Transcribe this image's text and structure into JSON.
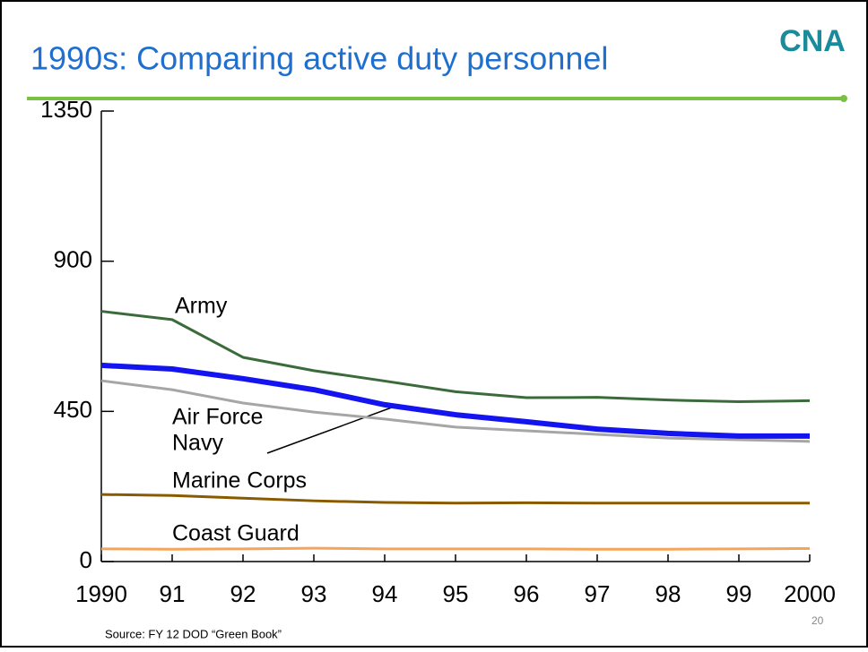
{
  "logo": "CNA",
  "slide_number": "20",
  "source": "Source: FY 12 DOD “Green Book”",
  "chart_data": {
    "type": "line",
    "title": "1990s: Comparing active duty personnel",
    "categories": [
      "1990",
      "91",
      "92",
      "93",
      "94",
      "95",
      "96",
      "97",
      "98",
      "99",
      "2000"
    ],
    "ylim": [
      0,
      1350
    ],
    "yticks": [
      0,
      450,
      900,
      1350
    ],
    "series": [
      {
        "name": "Army",
        "color": "#3b6b3b",
        "width": 3,
        "values": [
          750,
          725,
          612,
          572,
          541,
          509,
          491,
          492,
          484,
          479,
          482
        ]
      },
      {
        "name": "Air Force",
        "color": "#a6a6a6",
        "width": 3,
        "values": [
          542,
          515,
          475,
          448,
          427,
          403,
          392,
          381,
          370,
          365,
          360
        ]
      },
      {
        "name": "Navy",
        "color": "#1414f0",
        "width": 6,
        "values": [
          588,
          577,
          548,
          515,
          470,
          440,
          419,
          397,
          384,
          376,
          376
        ]
      },
      {
        "name": "Marine Corps",
        "color": "#8a5a00",
        "width": 3,
        "values": [
          201,
          198,
          190,
          182,
          177,
          175,
          176,
          175,
          175,
          175,
          175
        ]
      },
      {
        "name": "Coast Guard",
        "color": "#f4a55a",
        "width": 3,
        "values": [
          38,
          37,
          38,
          40,
          38,
          38,
          38,
          37,
          37,
          38,
          39
        ]
      }
    ]
  }
}
